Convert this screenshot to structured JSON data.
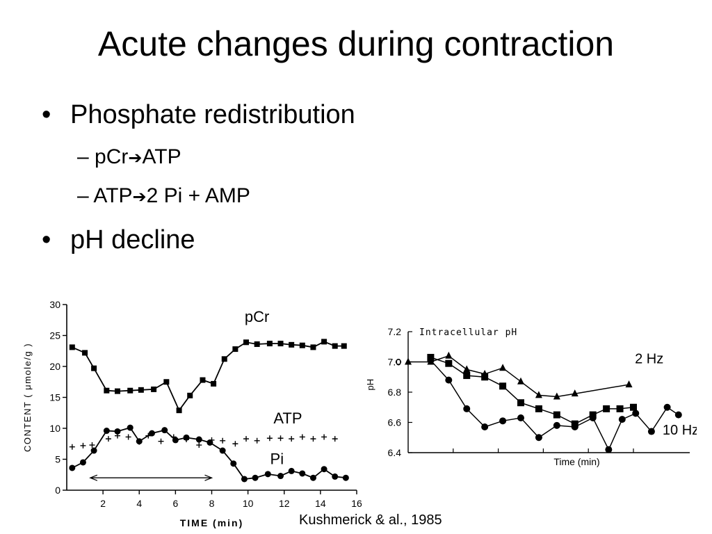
{
  "slide": {
    "title": "Acute changes during contraction",
    "bullets": [
      {
        "text": "Phosphate redistribution",
        "sub": [
          {
            "left": "pCr",
            "arrow": "➔",
            "right": "ATP"
          },
          {
            "left": "ATP",
            "arrow": "➔",
            "right": "2 Pi + AMP"
          }
        ]
      },
      {
        "text": "pH decline"
      }
    ],
    "bullet_glyph": "•",
    "dash_glyph": "–",
    "citation": "Kushmerick & al., 1985"
  },
  "chart_data": [
    {
      "type": "line",
      "ylabel": "CONTENT ( μmole/g )",
      "xlabel": "TIME  (min)",
      "xlim": [
        0,
        16
      ],
      "ylim": [
        0,
        30
      ],
      "xticks": [
        2,
        4,
        6,
        8,
        10,
        12,
        14,
        16
      ],
      "yticks": [
        0,
        5,
        10,
        15,
        20,
        25,
        30
      ],
      "series": [
        {
          "name": "pCr",
          "marker": "square",
          "x": [
            0.3,
            1.0,
            1.5,
            2.2,
            2.8,
            3.5,
            4.1,
            4.8,
            5.5,
            6.2,
            6.8,
            7.5,
            8.1,
            8.7,
            9.3,
            9.9,
            10.5,
            11.2,
            11.8,
            12.4,
            13.0,
            13.6,
            14.2,
            14.8,
            15.3
          ],
          "y": [
            23.1,
            22.2,
            19.7,
            16.1,
            16.0,
            16.1,
            16.2,
            16.3,
            17.5,
            12.9,
            15.3,
            17.8,
            17.2,
            21.2,
            22.8,
            23.9,
            23.6,
            23.7,
            23.7,
            23.5,
            23.4,
            23.1,
            24.0,
            23.3,
            23.3
          ]
        },
        {
          "name": "ATP",
          "marker": "plus",
          "x": [
            0.3,
            0.9,
            1.4,
            2.3,
            2.8,
            3.4,
            4.0,
            4.5,
            5.2,
            5.9,
            6.6,
            7.3,
            8.0,
            8.6,
            9.3,
            9.9,
            10.5,
            11.2,
            11.8,
            12.4,
            13.0,
            13.6,
            14.2,
            14.8
          ],
          "y": [
            7.0,
            7.2,
            7.3,
            8.3,
            8.8,
            8.6,
            7.8,
            8.8,
            7.9,
            8.6,
            8.2,
            7.3,
            8.1,
            8.0,
            7.5,
            8.3,
            8.0,
            8.4,
            8.4,
            8.3,
            8.6,
            8.3,
            8.6,
            8.3
          ]
        },
        {
          "name": "Pi",
          "marker": "circle",
          "x": [
            0.3,
            0.9,
            1.5,
            2.2,
            2.8,
            3.5,
            4.0,
            4.7,
            5.4,
            6.0,
            6.6,
            7.3,
            7.9,
            8.6,
            9.2,
            9.8,
            10.4,
            11.1,
            11.8,
            12.4,
            13.0,
            13.6,
            14.2,
            14.8,
            15.4
          ],
          "y": [
            3.6,
            4.5,
            6.4,
            9.6,
            9.5,
            10.1,
            7.9,
            9.2,
            9.7,
            8.1,
            8.5,
            8.2,
            7.7,
            6.4,
            4.3,
            1.8,
            2.0,
            2.6,
            2.3,
            3.1,
            2.7,
            2.0,
            3.4,
            2.2,
            2.0
          ]
        }
      ],
      "annotations": [
        {
          "text": "pCr",
          "near": "pCr series"
        },
        {
          "text": "ATP",
          "near": "ATP series"
        },
        {
          "text": "Pi",
          "near": "Pi series"
        },
        {
          "type": "double-arrow",
          "x_from": 1.3,
          "x_to": 8.0,
          "y": 2.0
        }
      ]
    },
    {
      "type": "line",
      "title": "Intracellular pH",
      "ylabel": "pH",
      "xlabel": "Time (min)",
      "ylim": [
        6.4,
        7.2
      ],
      "yticks": [
        6.4,
        6.6,
        6.8,
        7.0,
        7.2
      ],
      "x_ticks_unlabeled": [
        2,
        4,
        6,
        8,
        10
      ],
      "xlim": [
        0,
        12.5
      ],
      "series": [
        {
          "name": "2 Hz",
          "marker": "triangle",
          "x": [
            0,
            1,
            1.8,
            2.6,
            3.4,
            4.2,
            5.0,
            5.8,
            6.6,
            7.4,
            9.8
          ],
          "y": [
            7.0,
            7.0,
            7.04,
            6.95,
            6.92,
            6.96,
            6.87,
            6.78,
            6.77,
            6.79,
            6.85
          ]
        },
        {
          "name": "",
          "marker": "square",
          "x": [
            1.0,
            1.8,
            2.6,
            3.4,
            4.2,
            5.0,
            5.8,
            6.6,
            7.4,
            8.2,
            8.8,
            9.4,
            10.0
          ],
          "y": [
            7.03,
            6.99,
            6.91,
            6.9,
            6.84,
            6.73,
            6.69,
            6.65,
            6.59,
            6.65,
            6.69,
            6.69,
            6.7
          ]
        },
        {
          "name": "10 Hz",
          "marker": "circle",
          "x": [
            1.0,
            1.8,
            2.6,
            3.4,
            4.2,
            5.0,
            5.8,
            6.6,
            7.4,
            8.2,
            8.9,
            9.5,
            10.1,
            10.8,
            11.5,
            12.0
          ],
          "y": [
            7.01,
            6.88,
            6.69,
            6.57,
            6.61,
            6.63,
            6.5,
            6.58,
            6.57,
            6.63,
            6.42,
            6.62,
            6.66,
            6.54,
            6.7,
            6.65
          ]
        }
      ],
      "annotations": [
        {
          "text": "2 Hz",
          "near": "triangle series"
        },
        {
          "text": "10 Hz",
          "near": "circle series"
        }
      ]
    }
  ]
}
